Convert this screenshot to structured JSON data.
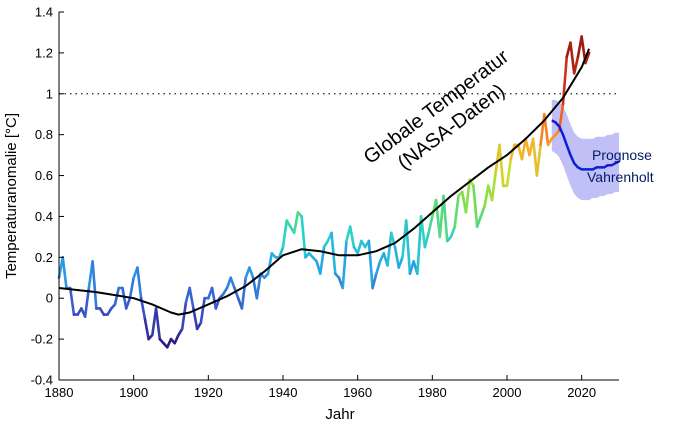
{
  "chart_data": {
    "type": "line",
    "title": "Globale Temperatur",
    "subtitle": "(NASA-Daten)",
    "xlabel": "Jahr",
    "ylabel": "Temperaturanomalie [°C]",
    "xlim": [
      1880,
      2030
    ],
    "ylim": [
      -0.4,
      1.4
    ],
    "xticks": [
      "1880",
      "1900",
      "1920",
      "1940",
      "1960",
      "1980",
      "2000",
      "2020"
    ],
    "yticks": [
      "-0.4",
      "-0.2",
      "0",
      "0.2",
      "0.4",
      "0.6",
      "0.8",
      "1",
      "1.2",
      "1.4"
    ],
    "reference_line": {
      "y": 1.0,
      "style": "dotted"
    },
    "grid": false,
    "series": [
      {
        "kind": "annual_anomaly_colored",
        "x": [
          1880,
          1881,
          1882,
          1883,
          1884,
          1885,
          1886,
          1887,
          1888,
          1889,
          1890,
          1891,
          1892,
          1893,
          1894,
          1895,
          1896,
          1897,
          1898,
          1899,
          1900,
          1901,
          1902,
          1903,
          1904,
          1905,
          1906,
          1907,
          1908,
          1909,
          1910,
          1911,
          1912,
          1913,
          1914,
          1915,
          1916,
          1917,
          1918,
          1919,
          1920,
          1921,
          1922,
          1923,
          1924,
          1925,
          1926,
          1927,
          1928,
          1929,
          1930,
          1931,
          1932,
          1933,
          1934,
          1935,
          1936,
          1937,
          1938,
          1939,
          1940,
          1941,
          1942,
          1943,
          1944,
          1945,
          1946,
          1947,
          1948,
          1949,
          1950,
          1951,
          1952,
          1953,
          1954,
          1955,
          1956,
          1957,
          1958,
          1959,
          1960,
          1961,
          1962,
          1963,
          1964,
          1965,
          1966,
          1967,
          1968,
          1969,
          1970,
          1971,
          1972,
          1973,
          1974,
          1975,
          1976,
          1977,
          1978,
          1979,
          1980,
          1981,
          1982,
          1983,
          1984,
          1985,
          1986,
          1987,
          1988,
          1989,
          1990,
          1991,
          1992,
          1993,
          1994,
          1995,
          1996,
          1997,
          1998,
          1999,
          2000,
          2001,
          2002,
          2003,
          2004,
          2005,
          2006,
          2007,
          2008,
          2009,
          2010,
          2011,
          2012,
          2013,
          2014,
          2015,
          2016,
          2017,
          2018,
          2019,
          2020,
          2021,
          2022
        ],
        "values": [
          0.1,
          0.2,
          0.05,
          0.05,
          -0.08,
          -0.08,
          -0.05,
          -0.09,
          0.05,
          0.18,
          -0.05,
          -0.05,
          -0.08,
          -0.08,
          -0.05,
          -0.03,
          0.05,
          0.05,
          -0.05,
          0.0,
          0.1,
          0.15,
          0.0,
          -0.1,
          -0.2,
          -0.18,
          -0.05,
          -0.2,
          -0.22,
          -0.24,
          -0.2,
          -0.22,
          -0.18,
          -0.15,
          -0.02,
          0.05,
          -0.05,
          -0.15,
          -0.12,
          0.0,
          0.0,
          0.05,
          -0.05,
          0.0,
          0.02,
          0.05,
          0.1,
          0.05,
          0.0,
          -0.05,
          0.1,
          0.15,
          0.1,
          0.0,
          0.12,
          0.1,
          0.12,
          0.22,
          0.2,
          0.2,
          0.25,
          0.38,
          0.35,
          0.32,
          0.42,
          0.4,
          0.2,
          0.22,
          0.2,
          0.18,
          0.12,
          0.25,
          0.28,
          0.32,
          0.12,
          0.1,
          0.05,
          0.28,
          0.35,
          0.25,
          0.22,
          0.28,
          0.25,
          0.28,
          0.05,
          0.12,
          0.18,
          0.22,
          0.16,
          0.32,
          0.25,
          0.15,
          0.2,
          0.38,
          0.12,
          0.18,
          0.12,
          0.4,
          0.25,
          0.32,
          0.4,
          0.48,
          0.3,
          0.5,
          0.28,
          0.3,
          0.35,
          0.5,
          0.52,
          0.42,
          0.58,
          0.55,
          0.35,
          0.4,
          0.45,
          0.55,
          0.48,
          0.62,
          0.75,
          0.55,
          0.55,
          0.68,
          0.75,
          0.75,
          0.68,
          0.78,
          0.7,
          0.78,
          0.6,
          0.75,
          0.9,
          0.75,
          0.78,
          0.8,
          0.82,
          0.95,
          1.18,
          1.25,
          1.1,
          1.18,
          1.28,
          1.15,
          1.2
        ],
        "color_scale": "blue to red by value"
      },
      {
        "kind": "trend_smooth",
        "color": "#000000",
        "x": [
          1880,
          1890,
          1900,
          1905,
          1910,
          1912,
          1915,
          1920,
          1925,
          1930,
          1935,
          1940,
          1945,
          1950,
          1955,
          1960,
          1965,
          1970,
          1975,
          1980,
          1985,
          1990,
          1995,
          2000,
          2005,
          2010,
          2015,
          2020,
          2022
        ],
        "values": [
          0.05,
          0.03,
          0.0,
          -0.03,
          -0.07,
          -0.08,
          -0.07,
          -0.03,
          0.01,
          0.06,
          0.13,
          0.21,
          0.24,
          0.23,
          0.21,
          0.21,
          0.23,
          0.27,
          0.34,
          0.42,
          0.5,
          0.57,
          0.64,
          0.7,
          0.78,
          0.87,
          0.98,
          1.13,
          1.22
        ]
      },
      {
        "name": "Prognose Vahrenholt",
        "kind": "forecast",
        "color": "#0a1fd6",
        "band_color": "#8c8cf0",
        "x": [
          2012,
          2013,
          2014,
          2015,
          2016,
          2017,
          2018,
          2019,
          2020,
          2021,
          2022,
          2023,
          2024,
          2025,
          2026,
          2027,
          2028,
          2029,
          2030
        ],
        "values": [
          0.87,
          0.86,
          0.84,
          0.8,
          0.75,
          0.7,
          0.66,
          0.64,
          0.63,
          0.63,
          0.63,
          0.63,
          0.64,
          0.64,
          0.64,
          0.65,
          0.65,
          0.66,
          0.67
        ],
        "lower": [
          0.72,
          0.71,
          0.69,
          0.65,
          0.6,
          0.55,
          0.51,
          0.49,
          0.48,
          0.48,
          0.48,
          0.49,
          0.49,
          0.5,
          0.5,
          0.51,
          0.51,
          0.52,
          0.52
        ],
        "upper": [
          0.97,
          0.97,
          0.96,
          0.94,
          0.9,
          0.85,
          0.81,
          0.79,
          0.78,
          0.78,
          0.78,
          0.78,
          0.79,
          0.79,
          0.79,
          0.8,
          0.8,
          0.81,
          0.81
        ]
      }
    ],
    "annotation_title": "Globale Temperatur",
    "annotation_subtitle": "(NASA-Daten)",
    "forecast_label": [
      "Prognose",
      "Vahrenholt"
    ]
  }
}
